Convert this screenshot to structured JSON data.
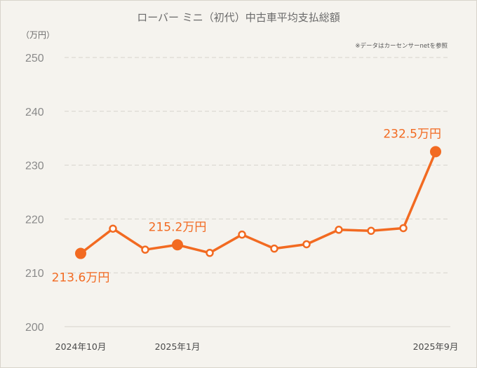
{
  "chart_data": {
    "type": "line",
    "title": "ローバー ミニ（初代）中古車平均支払総額",
    "unit_label": "（万円）",
    "source_note": "※データはカーセンサーnetを参照",
    "ylim": [
      200,
      250
    ],
    "yticks": [
      200,
      210,
      220,
      230,
      240,
      250
    ],
    "x_tick_labels": [
      {
        "index": 0,
        "label": "2024年10月"
      },
      {
        "index": 3,
        "label": "2025年1月"
      },
      {
        "index": 11,
        "label": "2025年9月"
      }
    ],
    "values": [
      213.6,
      218.2,
      214.3,
      215.2,
      213.7,
      217.1,
      214.5,
      215.3,
      218.0,
      217.8,
      218.3,
      232.5
    ],
    "highlights": [
      {
        "index": 0,
        "label": "213.6万円",
        "placement": "below"
      },
      {
        "index": 3,
        "label": "215.2万円",
        "placement": "above"
      },
      {
        "index": 11,
        "label": "232.5万円",
        "placement": "above"
      }
    ],
    "colors": {
      "line": "#f26a21",
      "grid": "#d6d3cc",
      "background": "#f5f3ee",
      "marker_fill": "#ffffff"
    }
  }
}
